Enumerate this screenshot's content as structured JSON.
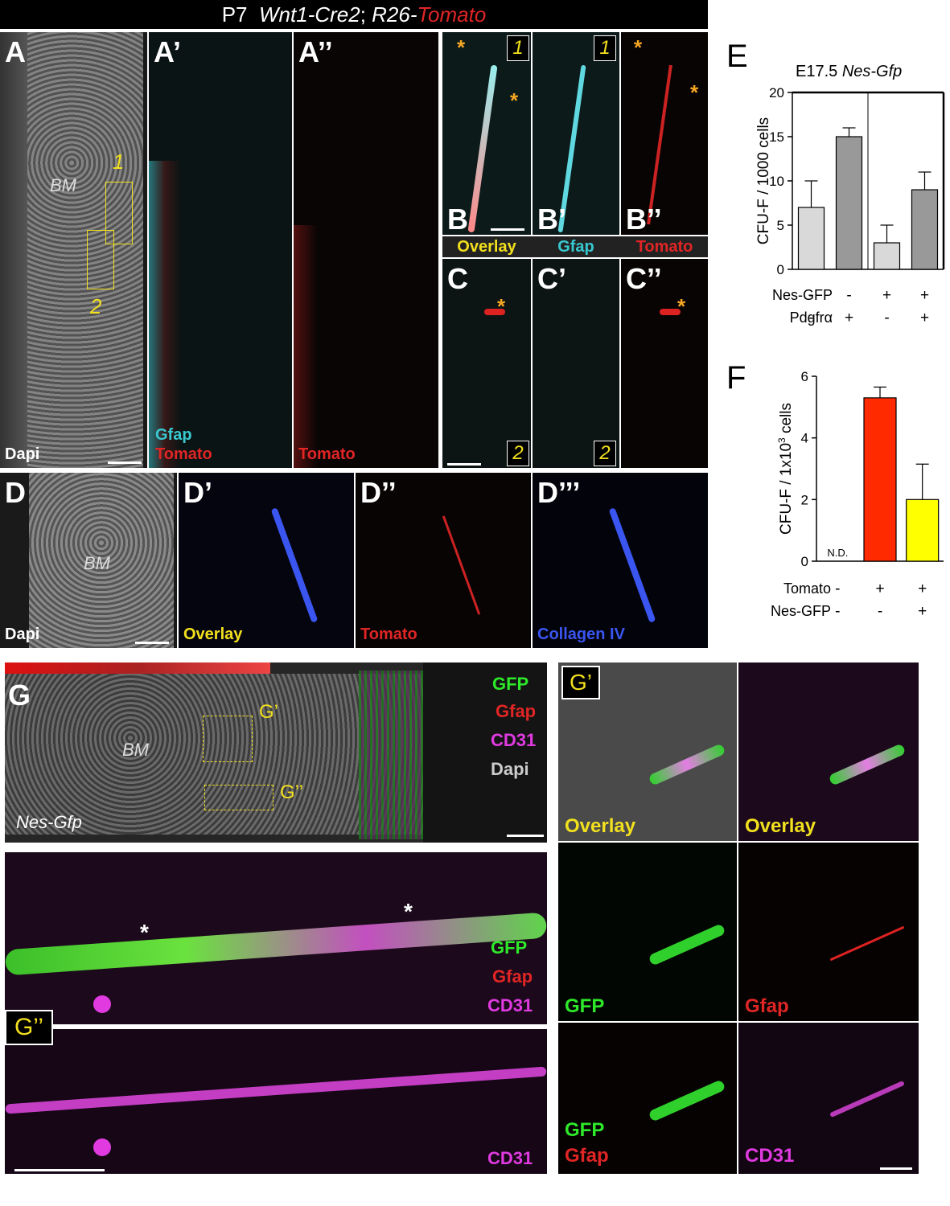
{
  "header": {
    "age": "P7",
    "genotype_cre": "Wnt1-Cre2",
    "sep": ";",
    "genotype_reporter_prefix": "R26-",
    "genotype_reporter_color": "Tomato"
  },
  "panels": {
    "A": {
      "letter": "A",
      "region": "BM",
      "box1": "1",
      "box2": "2",
      "channel": "Dapi"
    },
    "A1": {
      "letter": "A’",
      "ch1": "Gfap",
      "ch2": "Tomato"
    },
    "A2": {
      "letter": "A’’",
      "channel": "Tomato"
    },
    "B": {
      "letter": "B",
      "channel": "Overlay",
      "box": "1"
    },
    "B1": {
      "letter": "B’",
      "channel": "Gfap",
      "box": "1"
    },
    "B2": {
      "letter": "B’’",
      "channel": "Tomato"
    },
    "C": {
      "letter": "C",
      "box": "2"
    },
    "C1": {
      "letter": "C’",
      "box": "2"
    },
    "C2": {
      "letter": "C’’"
    },
    "D": {
      "letter": "D",
      "region": "BM",
      "channel": "Dapi"
    },
    "D1": {
      "letter": "D’",
      "channel": "Overlay"
    },
    "D2": {
      "letter": "D’’",
      "channel": "Tomato"
    },
    "D3": {
      "letter": "D’’’",
      "channel": "Collagen IV"
    },
    "G": {
      "letter": "G",
      "region": "BM",
      "genotype": "Nes-Gfp",
      "box1": "G’",
      "box2": "G’’",
      "legend": [
        "GFP",
        "Gfap",
        "CD31",
        "Dapi"
      ]
    },
    "G2": {
      "letter": "G’’",
      "legend_top": [
        "GFP",
        "Gfap",
        "CD31"
      ],
      "legend_bottom": "CD31"
    },
    "G1": {
      "letter": "G’",
      "cells": [
        "Overlay",
        "Overlay",
        "GFP",
        "Gfap",
        "GFP",
        "Gfap",
        "CD31"
      ]
    }
  },
  "colors": {
    "tomato": "#e02525",
    "gfap_cyan": "#37c8d0",
    "gfp_green": "#2ee82a",
    "cd31_magenta": "#e03ae0",
    "collagen_blue": "#3a55f0",
    "label_yellow": "#f2e01e",
    "bar_light": "#d9d9d9",
    "bar_dark": "#999999",
    "bar_red": "#ff2a00",
    "bar_yellow": "#ffff00"
  },
  "chart_data": [
    {
      "panel_letter": "E",
      "type": "bar",
      "title_prefix": "E17.5",
      "title_genotype": "Nes-Gfp",
      "ylabel": "CFU-F / 1000 cells",
      "ylim": [
        0,
        20
      ],
      "yticks": [
        0,
        5,
        10,
        15,
        20
      ],
      "values": [
        7,
        15,
        3,
        9
      ],
      "errors": [
        3,
        1,
        2,
        2
      ],
      "bar_colors": [
        "#d9d9d9",
        "#999999",
        "#d9d9d9",
        "#999999"
      ],
      "condition_rows": [
        {
          "label": "Nes-GFP",
          "signs": [
            "-",
            "-",
            "+",
            "+"
          ]
        },
        {
          "label": "Pdgfrα",
          "signs": [
            "-",
            "+",
            "-",
            "+"
          ]
        }
      ]
    },
    {
      "panel_letter": "F",
      "type": "bar",
      "ylabel": "CFU-F / 1x10",
      "ylabel_sup": "3",
      "ylabel_suffix": " cells",
      "ylim": [
        0,
        6
      ],
      "yticks": [
        0,
        2,
        4,
        6
      ],
      "values": [
        0,
        5.3,
        2
      ],
      "errors": [
        0,
        0.35,
        1.15
      ],
      "bar_colors": [
        "#ffffff",
        "#ff2a00",
        "#ffff00"
      ],
      "nd_label": "N.D.",
      "condition_rows": [
        {
          "label": "Tomato",
          "signs": [
            "-",
            "+",
            "+"
          ]
        },
        {
          "label": "Nes-GFP",
          "signs": [
            "-",
            "-",
            "+"
          ]
        }
      ]
    }
  ]
}
